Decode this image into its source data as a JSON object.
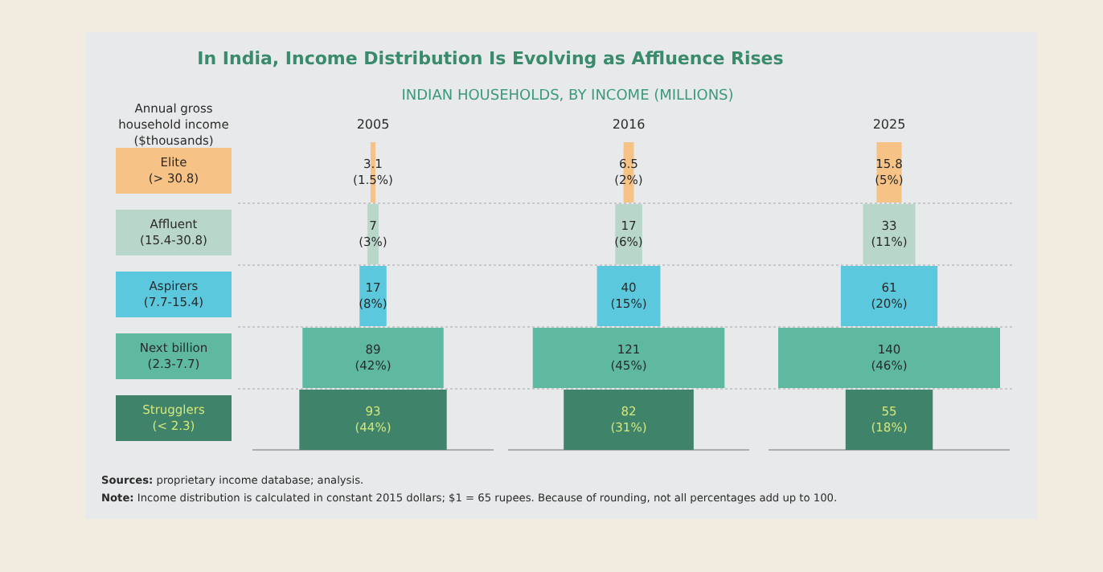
{
  "chart_data": {
    "type": "other",
    "title": "In India, Income Distribution Is Evolving as Affluence Rises",
    "subtitle": "INDIAN HOUSEHOLDS, BY INCOME (MILLIONS)",
    "ylabel": "Annual gross household income ($thousands)",
    "categories": [
      "Elite\n(> 30.8)",
      "Affluent\n(15.4-30.8)",
      "Aspirers\n(7.7-15.4)",
      "Next billion\n(2.3-7.7)",
      "Strugglers\n(< 2.3)"
    ],
    "colors": [
      "#f7c285",
      "#b8d6c9",
      "#5bc8de",
      "#5fb8a0",
      "#3f836b"
    ],
    "series": [
      {
        "name": "2005",
        "colors": [
          "#f7c285",
          "#b8d6c9",
          "#5bc8de",
          "#5fb8a0",
          "#3f836b"
        ],
        "values": [
          3.1,
          7,
          17,
          89,
          93
        ],
        "value_labels": [
          "3.1\n(1.5%)",
          "7\n(3%)",
          "17\n(8%)",
          "89\n(42%)",
          "93\n(44%)"
        ]
      },
      {
        "name": "2016",
        "colors": [
          "#f7c285",
          "#b8d6c9",
          "#5bc8de",
          "#5fb8a0",
          "#3f836b"
        ],
        "values": [
          6.5,
          17,
          40,
          121,
          82
        ],
        "value_labels": [
          "6.5\n(2%)",
          "17\n(6%)",
          "40\n(15%)",
          "121\n(45%)",
          "82\n(31%)"
        ]
      },
      {
        "name": "2025",
        "colors": [
          "#f7c285",
          "#b8d6c9",
          "#5bc8de",
          "#5fb8a0",
          "#3f836b"
        ],
        "values": [
          15.8,
          33,
          61,
          140,
          55
        ],
        "value_labels": [
          "15.8\n(5%)",
          "33\n(11%)",
          "61\n(20%)",
          "140\n(46%)",
          "55\n(18%)"
        ]
      }
    ],
    "annotations": [
      "Sources: proprietary income database; analysis.",
      "Note: Income distribution is calculated in constant 2015 dollars; $1 = 65 rupees. Because of rounding, not all percentages add up to 100."
    ]
  }
}
